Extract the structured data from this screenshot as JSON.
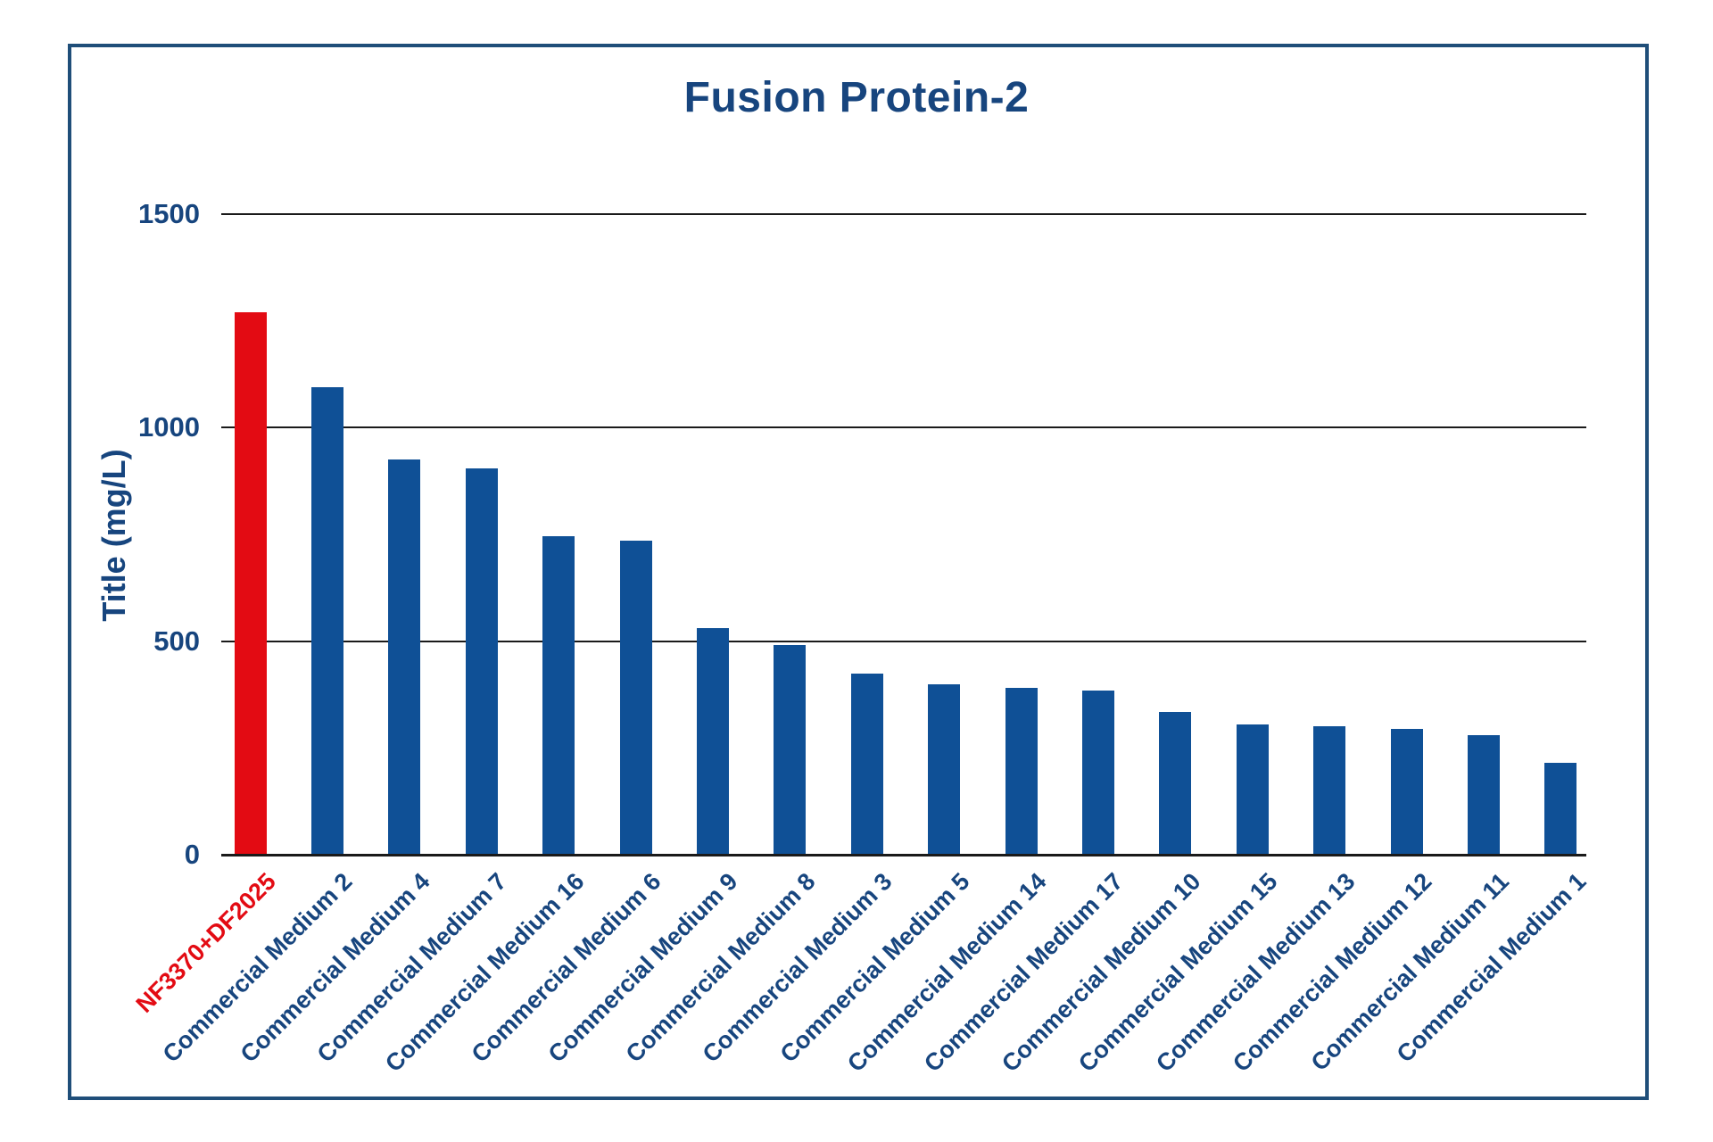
{
  "chart_data": {
    "type": "bar",
    "title": "Fusion Protein-2",
    "ylabel": "Title (mg/L)",
    "xlabel": "",
    "legend": "none",
    "grid": "horizontal",
    "ylim": [
      0,
      1500
    ],
    "yticks": [
      0,
      500,
      1000,
      1500
    ],
    "categories": [
      "NF3370+DF2025",
      "Commercial Medium 2",
      "Commercial Medium 4",
      "Commercial Medium 7",
      "Commercial Medium 16",
      "Commercial Medium 6",
      "Commercial Medium 9",
      "Commercial Medium 8",
      "Commercial Medium 3",
      "Commercial Medium 5",
      "Commercial Medium 14",
      "Commercial Medium 17",
      "Commercial Medium 10",
      "Commercial Medium 15",
      "Commercial Medium 13",
      "Commercial Medium 12",
      "Commercial Medium 11",
      "Commercial Medium 1"
    ],
    "values": [
      1270,
      1095,
      925,
      905,
      745,
      735,
      530,
      490,
      425,
      400,
      390,
      385,
      335,
      305,
      300,
      295,
      280,
      215
    ],
    "highlight_index": 0,
    "colors": {
      "bar": "#0f5096",
      "highlight_bar": "#e30b13",
      "title_text": "#17457e",
      "axis_text": "#17457e",
      "highlight_label": "#e30b13",
      "gridline": "#1a1a1a",
      "frame_border": "#1f4e79"
    }
  }
}
